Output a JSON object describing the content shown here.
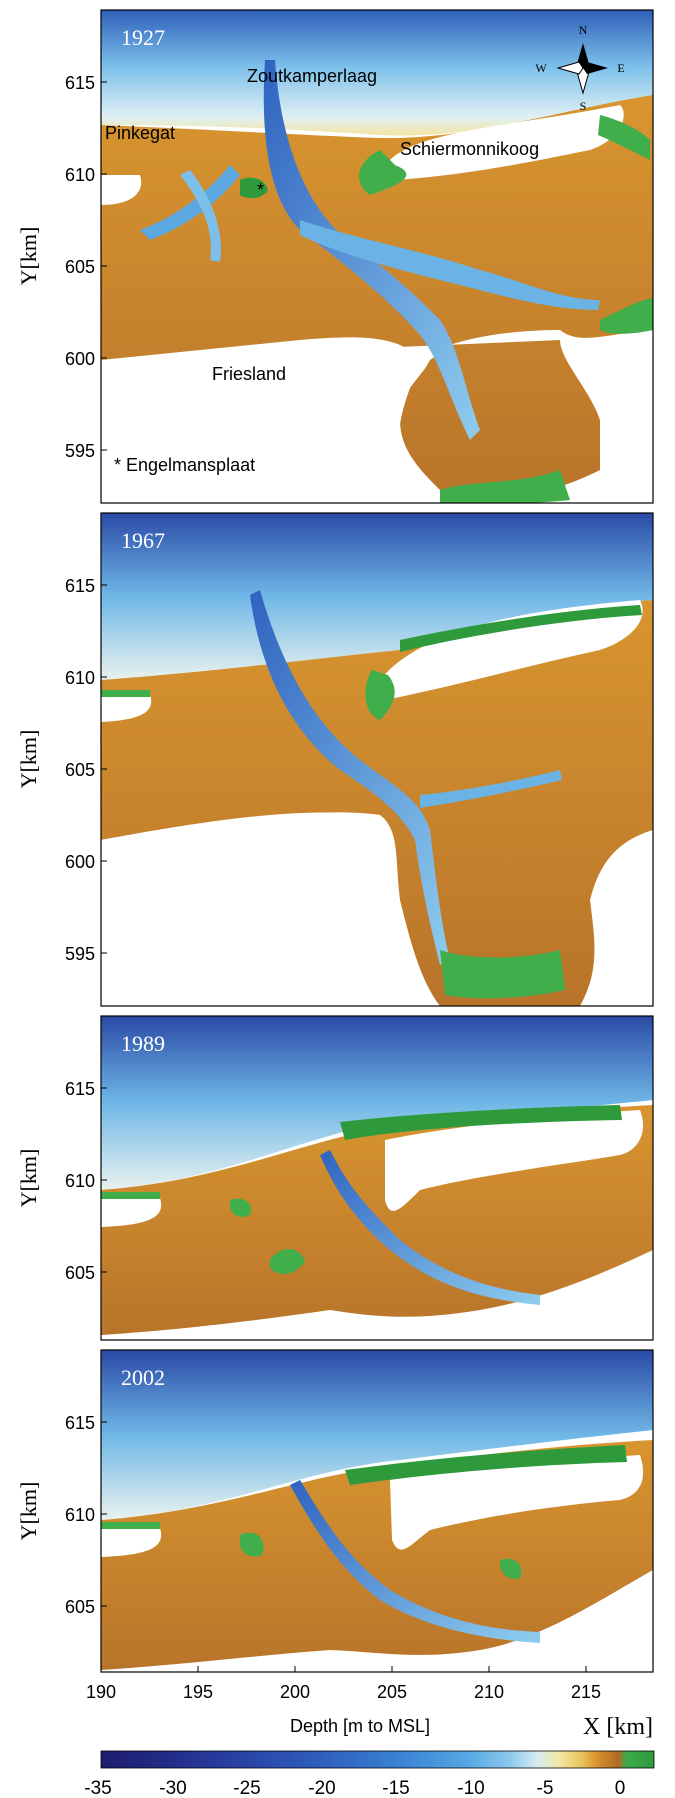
{
  "axes": {
    "y_label": "Y[km]",
    "x_label": "X [km]",
    "x_ticks": [
      "190",
      "195",
      "200",
      "205",
      "210",
      "215"
    ]
  },
  "panels": [
    {
      "year": "1927",
      "y_ticks": [
        "615",
        "610",
        "605",
        "600",
        "595"
      ]
    },
    {
      "year": "1967",
      "y_ticks": [
        "615",
        "610",
        "605",
        "600",
        "595"
      ]
    },
    {
      "year": "1989",
      "y_ticks": [
        "615",
        "610",
        "605"
      ]
    },
    {
      "year": "2002",
      "y_ticks": [
        "615",
        "610",
        "605"
      ]
    }
  ],
  "annotations": {
    "zoutkamperlaag": "Zoutkamperlaag",
    "pinkegat": "Pinkegat",
    "schiermonnikoog": "Schiermonnikoog",
    "friesland": "Friesland",
    "engelmansplaat": "* Engelmansplaat",
    "asterisk": "*"
  },
  "compass": {
    "n": "N",
    "s": "S",
    "e": "E",
    "w": "W"
  },
  "colorbar": {
    "label": "Depth [m to MSL]",
    "ticks": [
      "-35",
      "-30",
      "-25",
      "-20",
      "-15",
      "-10",
      "-5",
      "0"
    ],
    "colors": [
      "#1c1d6e",
      "#232f8c",
      "#2a46a8",
      "#2f61bf",
      "#3a82d3",
      "#55a6e2",
      "#8cc9ee",
      "#d8ecf2",
      "#f2e7a0",
      "#e9c15b",
      "#d68e2c",
      "#b06a22",
      "#3faa4a",
      "#2e9a3c"
    ]
  },
  "chart_data": {
    "type": "heatmap",
    "title": "",
    "xlabel": "X [km]",
    "ylabel": "Y[km]",
    "colorbar_label": "Depth [m to MSL]",
    "colorbar_range": [
      -35,
      2
    ],
    "panels": [
      {
        "year": "1927",
        "xlim": [
          190,
          218.5
        ],
        "ylim": [
          592,
          619
        ]
      },
      {
        "year": "1967",
        "xlim": [
          190,
          218.5
        ],
        "ylim": [
          592,
          619
        ]
      },
      {
        "year": "1989",
        "xlim": [
          190,
          218.5
        ],
        "ylim": [
          601,
          619
        ]
      },
      {
        "year": "2002",
        "xlim": [
          190,
          218.5
        ],
        "ylim": [
          601,
          619
        ]
      }
    ]
  }
}
